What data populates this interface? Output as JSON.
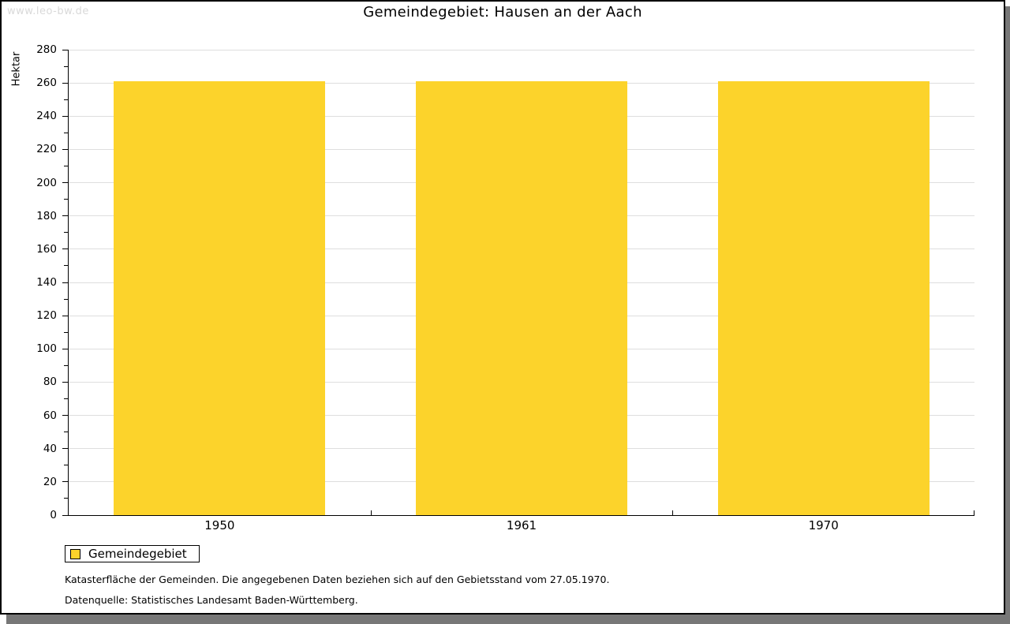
{
  "watermark": "www.leo-bw.de",
  "title": "Gemeindegebiet: Hausen an der Aach",
  "chart_data": {
    "type": "bar",
    "title": "Gemeindegebiet: Hausen an der Aach",
    "categories": [
      "1950",
      "1961",
      "1970"
    ],
    "series": [
      {
        "name": "Gemeindegebiet",
        "values": [
          261,
          261,
          261
        ]
      }
    ],
    "xlabel": "",
    "ylabel": "Hektar",
    "ylim": [
      0,
      280
    ],
    "ytick_step": 20,
    "yminor_step": 10,
    "grid": true,
    "legend_position": "bottom-left",
    "bar_color": "#FCD32B"
  },
  "legend": {
    "items": [
      {
        "label": "Gemeindegebiet",
        "color": "#FCD32B"
      }
    ]
  },
  "footer": {
    "line1": "Katasterfläche der Gemeinden. Die angegebenen Daten beziehen sich auf den Gebietsstand vom 27.05.1970.",
    "line2": "Datenquelle: Statistisches Landesamt Baden-Württemberg."
  },
  "colors": {
    "bar": "#FCD32B",
    "grid": "#DEDEDE",
    "axis": "#000000",
    "watermark": "#D9D9D9",
    "shadow": "#777777"
  }
}
